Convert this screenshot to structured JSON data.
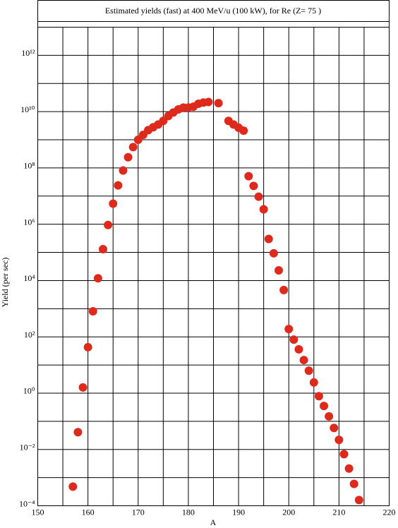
{
  "chart_data": {
    "type": "scatter",
    "title": "Estimated yields (fast) at 400 MeV/u (100 kW), for Re (Z= 75 )",
    "x_label": "A",
    "y_label": "Yield (per sec)",
    "log_y": true,
    "grid": true,
    "xlim": [
      150,
      220
    ],
    "xticks": [
      150,
      160,
      170,
      180,
      190,
      200,
      210,
      220
    ],
    "x_minor_ticks": [
      155,
      165,
      175,
      185,
      195,
      205,
      215
    ],
    "ylim": [
      0.0001,
      10000000000000
    ],
    "yticks": [
      {
        "value": 0.0001,
        "label": "10⁻⁴"
      },
      {
        "value": 0.01,
        "label": "10⁻²"
      },
      {
        "value": 1,
        "label": "10⁰"
      },
      {
        "value": 100,
        "label": "10²"
      },
      {
        "value": 10000,
        "label": "10⁴"
      },
      {
        "value": 1000000,
        "label": "10⁶"
      },
      {
        "value": 100000000,
        "label": "10⁸"
      },
      {
        "value": 10000000000,
        "label": "10¹⁰"
      },
      {
        "value": 1000000000000,
        "label": "10¹²"
      }
    ],
    "y_minor_ticks": [
      0.001,
      0.1,
      10,
      1000,
      100000,
      10000000,
      1000000000,
      100000000000
    ],
    "series": [
      {
        "color": "#de2a1c",
        "x": [
          157,
          158,
          159,
          160,
          161,
          162,
          163,
          164,
          165,
          166,
          167,
          168,
          169,
          170,
          171,
          172,
          173,
          174,
          175,
          176,
          177,
          178,
          179,
          180,
          181,
          182,
          183,
          184,
          186,
          188,
          189,
          190,
          191,
          192,
          193,
          194,
          195,
          196,
          197,
          198,
          199,
          200,
          201,
          202,
          203,
          204,
          205,
          206,
          207,
          208,
          209,
          210,
          211,
          212,
          213,
          214
        ],
        "values": [
          0.00048,
          0.041,
          1.6,
          43,
          810,
          12000,
          130000,
          940000,
          5400000,
          24000000,
          81000000,
          240000000,
          550000000,
          1000000000,
          1500000000,
          2200000000,
          2800000000,
          3500000000,
          4700000000,
          7000000000,
          9300000000,
          12000000000,
          14000000000,
          14000000000,
          15000000000,
          19000000000,
          21000000000,
          22000000000,
          20000000000,
          4700000000,
          3500000000,
          2700000000,
          2100000000,
          51000000,
          23000000,
          9500000,
          3400000,
          300000,
          93000,
          23000,
          4600,
          190,
          80,
          36,
          15,
          6.3,
          2.4,
          0.78,
          0.35,
          0.15,
          0.058,
          0.022,
          0.0068,
          0.0021,
          0.0006,
          0.00016
        ]
      }
    ]
  }
}
